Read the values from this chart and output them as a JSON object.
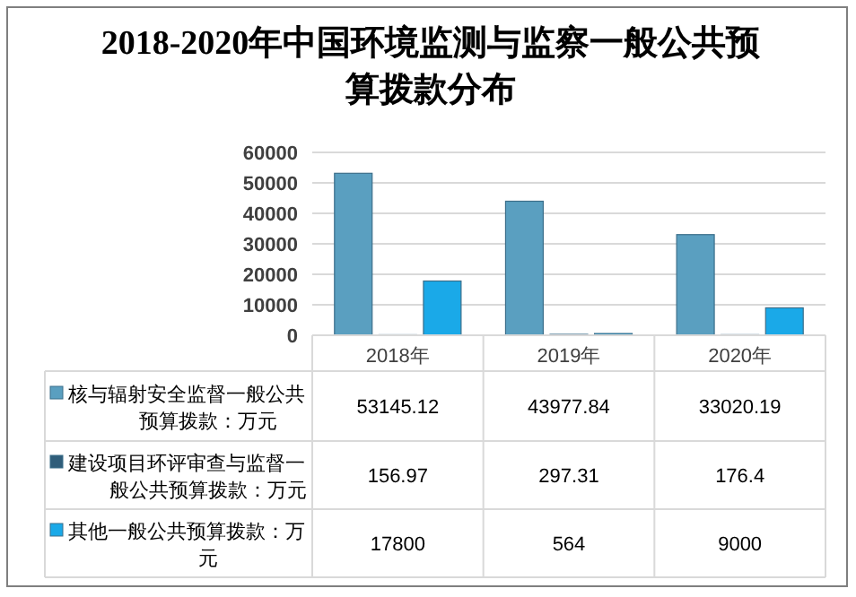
{
  "chart_data": {
    "type": "bar",
    "title": "2018-2020年中国环境监测与监察一般公共预算拨款分布",
    "categories": [
      "2018年",
      "2019年",
      "2020年"
    ],
    "series": [
      {
        "name": "核与辐射安全监督一般公共预算拨款：万元",
        "color": "#5a9fc0",
        "values": [
          53145.12,
          43977.84,
          33020.19
        ]
      },
      {
        "name": "建设项目环评审查与监督一般公共预算拨款：万元",
        "color": "#2f5d7a",
        "values": [
          156.97,
          297.31,
          176.4
        ]
      },
      {
        "name": "其他一般公共预算拨款：万元",
        "color": "#1aa9e8",
        "values": [
          17800,
          564,
          9000
        ]
      }
    ],
    "ylim": [
      0,
      60000
    ],
    "yticks": [
      0,
      10000,
      20000,
      30000,
      40000,
      50000,
      60000
    ],
    "grid": "y",
    "legend": "bottom left",
    "data_labels": true
  }
}
